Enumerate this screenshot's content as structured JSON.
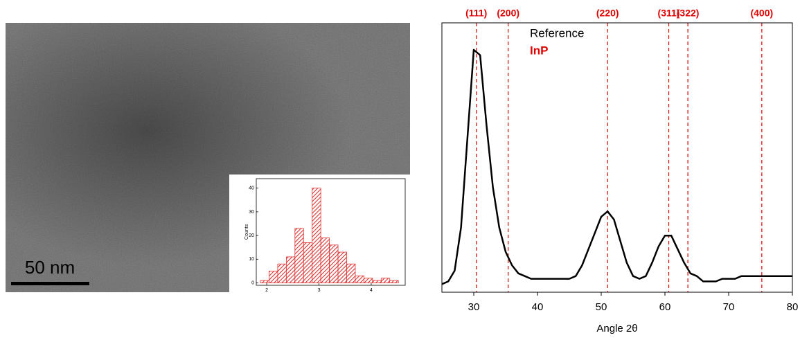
{
  "image": {
    "scale_bar": "50 nm"
  },
  "chart_data": [
    {
      "type": "histogram",
      "ylabel": "Counts",
      "color": "#e03030",
      "bins": [
        1.88,
        2.045,
        2.21,
        2.375,
        2.54,
        2.705,
        2.87,
        3.035,
        3.2,
        3.365,
        3.53,
        3.695,
        3.86,
        4.025,
        4.19,
        4.355,
        4.52
      ],
      "values": [
        1,
        5,
        8,
        11,
        23,
        17,
        40,
        19,
        16,
        13,
        8,
        3,
        2,
        1,
        2,
        1
      ],
      "xlim": [
        1.8,
        4.65
      ],
      "xticks": [
        2,
        3,
        4
      ],
      "ylim": [
        -1,
        44
      ],
      "yticks": [
        0,
        10,
        20,
        30,
        40
      ]
    },
    {
      "type": "line",
      "xlabel": "Angle 2θ",
      "x": [
        25,
        26,
        27,
        28,
        29,
        30,
        31,
        32,
        33,
        34,
        35,
        36,
        37,
        38,
        39,
        40,
        41,
        42,
        43,
        44,
        45,
        46,
        47,
        48,
        49,
        50,
        51,
        52,
        53,
        54,
        55,
        56,
        57,
        58,
        59,
        60,
        61,
        62,
        63,
        64,
        65,
        66,
        67,
        68,
        69,
        70,
        71,
        72,
        73,
        74,
        75,
        76,
        77,
        78,
        79,
        80
      ],
      "series": [
        {
          "color": "#000000",
          "values": [
            3,
            4,
            8,
            24,
            57,
            90,
            88,
            62,
            39,
            24,
            15,
            10,
            7,
            6,
            5,
            5,
            5,
            5,
            5,
            5,
            5,
            6,
            10,
            16,
            22,
            28,
            30,
            27,
            19,
            11,
            6,
            5,
            6,
            11,
            17,
            21,
            21,
            16,
            11,
            7,
            6,
            4,
            4,
            4,
            5,
            5,
            5,
            6,
            6,
            6,
            6,
            6,
            6,
            6,
            6,
            6
          ]
        }
      ],
      "xlim": [
        25,
        80
      ],
      "xticks": [
        30,
        40,
        50,
        60,
        70,
        80
      ],
      "ylim": [
        0,
        100
      ],
      "reference_color": "#e00000",
      "reference_lines": [
        {
          "x": 30.4,
          "label": "(111)"
        },
        {
          "x": 35.4,
          "label": "(200)"
        },
        {
          "x": 51.0,
          "label": "(220)"
        },
        {
          "x": 60.6,
          "label": "(311)"
        },
        {
          "x": 63.6,
          "label": "(322)"
        },
        {
          "x": 75.2,
          "label": "(400)"
        }
      ],
      "annotations": [
        "Reference",
        "InP"
      ]
    }
  ]
}
